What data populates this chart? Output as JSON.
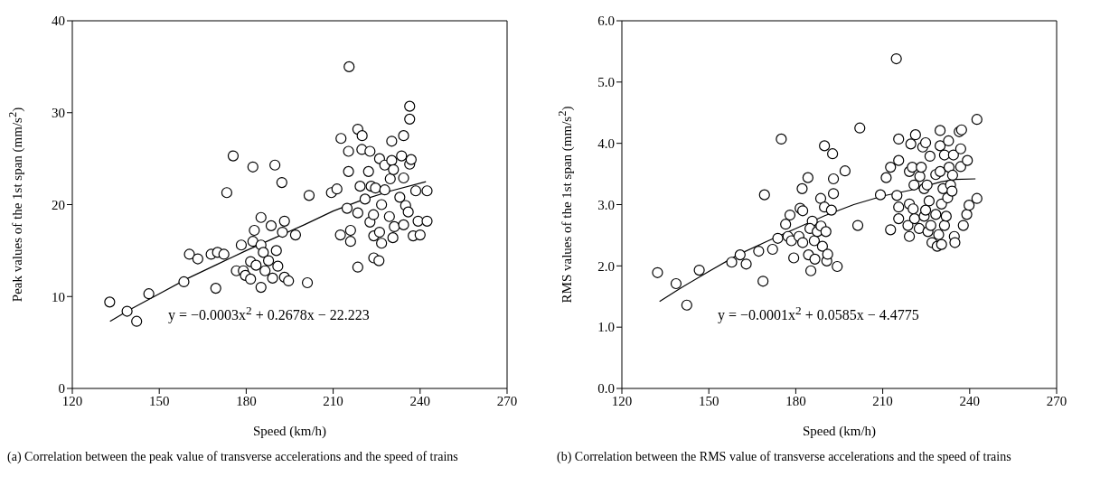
{
  "chart_data": [
    {
      "type": "scatter",
      "xlabel": "Speed (km/h)",
      "ylabel": "Peak values of the 1st span (mm/s$^{2}$)",
      "xlim": [
        120,
        270
      ],
      "xticks": [
        120,
        150,
        180,
        210,
        240,
        270
      ],
      "ylim": [
        0,
        40
      ],
      "yticks": [
        0,
        10,
        20,
        30,
        40
      ],
      "annotations": [
        "y = −0.0003x$^{2}$ + 0.2678x − 22.223",
        "(a)  Correlation between the peak value of transverse accelerations and the speed of trains"
      ],
      "series": [
        {
          "color": "#000000",
          "marker": "circle",
          "x": [
            132.9,
            138.9,
            142.2,
            146.4,
            158.5,
            160.4,
            163.3,
            167.9,
            170.1,
            172.3,
            169.5,
            173.3,
            175.5,
            176.6,
            178.3,
            179.0,
            179.7,
            181.5,
            182.3,
            182.8,
            182.3,
            181.5,
            183.4,
            185.1,
            185.1,
            185.1,
            185.9,
            186.5,
            187.7,
            188.6,
            189.1,
            189.9,
            190.4,
            190.9,
            192.3,
            192.5,
            193.2,
            193.2,
            194.6,
            197.0,
            201.1,
            201.7,
            209.4,
            211.3,
            212.7,
            212.5,
            215.5,
            215.3,
            215.3,
            214.8,
            216.0,
            216.0,
            218.5,
            220.0,
            218.5,
            218.5,
            219.9,
            219.3,
            221.0,
            222.2,
            222.7,
            223.1,
            222.7,
            223.9,
            224.0,
            224.0,
            225.8,
            226.0,
            224.6,
            226.7,
            226.0,
            226.7,
            227.8,
            227.8,
            230.2,
            230.2,
            229.7,
            230.8,
            229.4,
            230.6,
            231.1,
            233.0,
            233.6,
            234.3,
            234.3,
            235.0,
            235.9,
            234.3,
            236.4,
            236.4,
            236.4,
            236.9,
            237.6,
            238.5,
            240.0,
            239.3,
            242.4,
            242.4
          ],
          "values": [
            9.4,
            8.4,
            7.3,
            10.3,
            11.6,
            14.6,
            14.1,
            14.6,
            14.8,
            14.6,
            10.9,
            21.3,
            25.3,
            12.8,
            15.6,
            12.8,
            12.3,
            11.9,
            24.1,
            17.2,
            16.0,
            13.8,
            13.4,
            18.6,
            11.0,
            15.6,
            14.8,
            12.8,
            13.9,
            17.7,
            12.0,
            24.3,
            15.0,
            13.3,
            22.4,
            17.0,
            18.2,
            12.1,
            11.7,
            16.7,
            11.5,
            21.0,
            21.3,
            21.7,
            27.2,
            16.7,
            35.0,
            25.8,
            23.6,
            19.6,
            17.2,
            16.0,
            28.2,
            27.5,
            13.2,
            19.1,
            26.0,
            22.0,
            20.6,
            23.6,
            25.8,
            22.0,
            18.1,
            18.9,
            16.6,
            14.2,
            13.9,
            25.0,
            21.8,
            20.0,
            17.0,
            15.8,
            21.6,
            24.3,
            26.9,
            24.8,
            22.8,
            23.8,
            18.7,
            16.4,
            17.6,
            20.8,
            25.3,
            22.9,
            27.5,
            19.9,
            19.2,
            17.8,
            30.7,
            29.3,
            24.4,
            24.9,
            16.6,
            21.5,
            16.7,
            18.2,
            21.5,
            18.2
          ]
        },
        {
          "type": "line",
          "color": "#000000",
          "marker": "none",
          "line_style": "solid",
          "x": [
            133,
            140,
            150,
            160,
            170,
            180,
            190,
            200,
            210,
            220,
            230,
            242
          ],
          "values": [
            7.3,
            8.6,
            10.3,
            12.0,
            13.5,
            15.0,
            16.4,
            17.8,
            19.3,
            20.5,
            21.5,
            22.5
          ]
        }
      ]
    },
    {
      "type": "scatter",
      "xlabel": "Speed (km/h)",
      "ylabel": "RMS values of the 1st span (mm/s$^{2}$)",
      "xlim": [
        120,
        270
      ],
      "xticks": [
        120,
        150,
        180,
        210,
        240,
        270
      ],
      "ylim": [
        0,
        6
      ],
      "yticks": [
        {
          "value": 0,
          "label": "0.0"
        },
        {
          "value": 1,
          "label": "1.0"
        },
        {
          "value": 2,
          "label": "2.0"
        },
        {
          "value": 3,
          "label": "3.0"
        },
        {
          "value": 4,
          "label": "4.0"
        },
        {
          "value": 5,
          "label": "5.0"
        },
        {
          "value": 6,
          "label": "6.0"
        }
      ],
      "annotations": [
        "y = −0.0001x$^{2}$ + 0.0585x − 4.4775",
        "(b)  Correlation between the RMS value of transverse accelerations and the speed of trains"
      ],
      "series": [
        {
          "color": "#000000",
          "marker": "circle",
          "x": [
            132.3,
            138.7,
            142.4,
            146.7,
            157.9,
            160.8,
            162.9,
            167.2,
            168.7,
            169.2,
            172.0,
            173.8,
            175.0,
            176.5,
            178.0,
            177.3,
            178.5,
            179.3,
            181.1,
            181.5,
            182.4,
            182.2,
            182.4,
            184.2,
            184.4,
            185.2,
            185.7,
            184.9,
            186.4,
            186.6,
            187.4,
            188.6,
            188.7,
            189.2,
            189.9,
            189.9,
            190.4,
            190.7,
            191.0,
            192.3,
            192.7,
            193.0,
            193.0,
            194.3,
            197.0,
            201.4,
            202.1,
            209.2,
            211.2,
            212.7,
            212.7,
            214.7,
            214.9,
            215.5,
            215.5,
            215.5,
            215.5,
            218.7,
            219.2,
            219.2,
            219.2,
            219.7,
            220.2,
            220.5,
            220.8,
            221.0,
            221.3,
            222.6,
            222.8,
            223.3,
            223.8,
            224.3,
            224.3,
            224.8,
            224.8,
            225.3,
            225.6,
            226.0,
            226.3,
            226.6,
            227.0,
            228.3,
            228.3,
            228.8,
            229.3,
            229.8,
            229.8,
            229.8,
            230.3,
            230.3,
            230.8,
            231.3,
            231.3,
            231.9,
            232.4,
            232.7,
            232.9,
            233.4,
            233.9,
            234.1,
            234.4,
            234.7,
            234.9,
            236.4,
            236.9,
            236.9,
            237.2,
            237.8,
            239.0,
            239.2,
            239.8,
            242.5,
            242.5
          ],
          "values": [
            1.89,
            1.71,
            1.36,
            1.93,
            2.06,
            2.18,
            2.03,
            2.24,
            1.75,
            3.16,
            2.27,
            2.45,
            4.07,
            2.68,
            2.83,
            2.48,
            2.41,
            2.13,
            2.48,
            2.94,
            2.9,
            3.26,
            2.38,
            3.44,
            2.18,
            1.92,
            2.73,
            2.61,
            2.41,
            2.11,
            2.56,
            3.1,
            2.65,
            2.32,
            3.96,
            2.96,
            2.56,
            2.08,
            2.19,
            2.91,
            3.83,
            3.42,
            3.18,
            1.99,
            3.55,
            2.66,
            4.25,
            3.16,
            3.44,
            3.61,
            2.59,
            5.38,
            3.15,
            4.07,
            3.72,
            2.96,
            2.77,
            2.66,
            2.48,
            3.54,
            3.01,
            3.99,
            3.61,
            2.93,
            3.32,
            2.77,
            4.14,
            2.61,
            3.46,
            3.61,
            3.94,
            3.26,
            2.81,
            4.01,
            2.91,
            3.32,
            2.56,
            3.06,
            3.79,
            2.66,
            2.38,
            3.49,
            2.84,
            2.32,
            2.51,
            4.21,
            3.96,
            3.54,
            3.01,
            2.35,
            3.26,
            3.81,
            2.66,
            2.81,
            3.11,
            4.04,
            3.61,
            3.32,
            3.22,
            3.48,
            3.81,
            2.48,
            2.38,
            4.19,
            3.91,
            3.62,
            4.22,
            2.66,
            2.84,
            3.72,
            2.99,
            4.39,
            3.1
          ]
        },
        {
          "type": "line",
          "color": "#000000",
          "marker": "none",
          "line_style": "solid",
          "x": [
            133,
            140,
            150,
            160,
            170,
            180,
            190,
            200,
            210,
            220,
            230,
            235,
            242
          ],
          "values": [
            1.42,
            1.63,
            1.91,
            2.18,
            2.4,
            2.61,
            2.82,
            3.0,
            3.14,
            3.24,
            3.37,
            3.41,
            3.42
          ]
        }
      ]
    }
  ]
}
